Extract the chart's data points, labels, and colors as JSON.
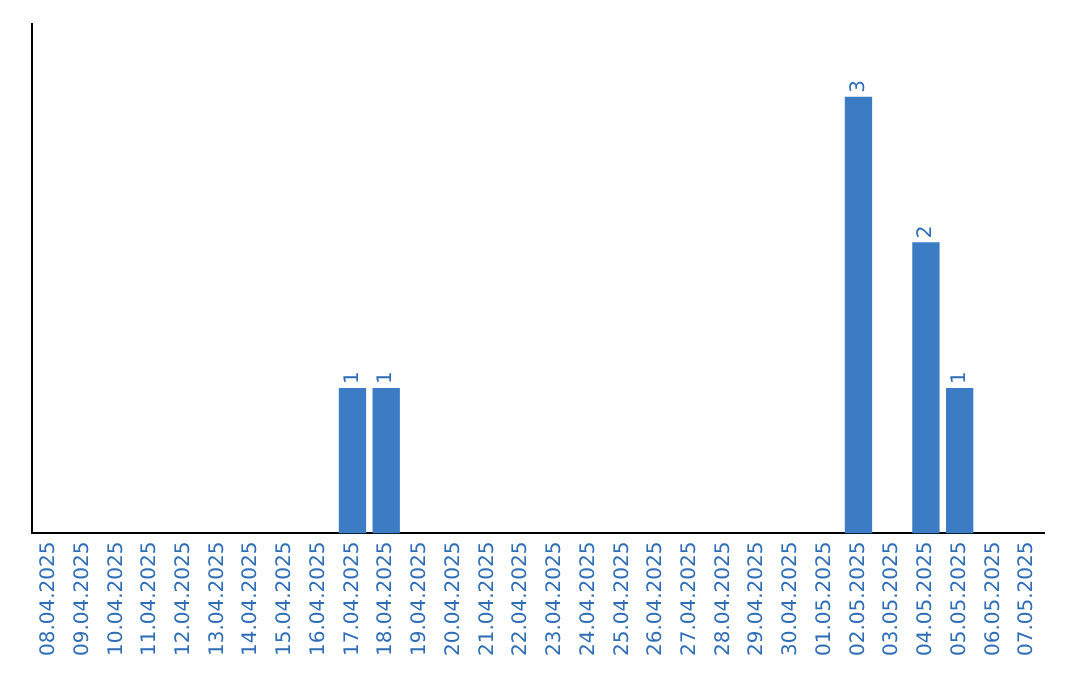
{
  "chart_data": {
    "type": "bar",
    "categories": [
      "08.04.2025",
      "09.04.2025",
      "10.04.2025",
      "11.04.2025",
      "12.04.2025",
      "13.04.2025",
      "14.04.2025",
      "15.04.2025",
      "16.04.2025",
      "17.04.2025",
      "18.04.2025",
      "19.04.2025",
      "20.04.2025",
      "21.04.2025",
      "22.04.2025",
      "23.04.2025",
      "24.04.2025",
      "25.04.2025",
      "26.04.2025",
      "27.04.2025",
      "28.04.2025",
      "29.04.2025",
      "30.04.2025",
      "01.05.2025",
      "02.05.2025",
      "03.05.2025",
      "04.05.2025",
      "05.05.2025",
      "06.05.2025",
      "07.05.2025"
    ],
    "values": [
      null,
      null,
      null,
      null,
      null,
      null,
      null,
      null,
      null,
      1,
      1,
      null,
      null,
      null,
      null,
      null,
      null,
      null,
      null,
      null,
      null,
      null,
      null,
      null,
      3,
      null,
      2,
      1,
      null,
      null
    ],
    "color": "#3b7cc4",
    "data_labels": true,
    "grid": false,
    "legend": false,
    "tick_labels": "x"
  }
}
